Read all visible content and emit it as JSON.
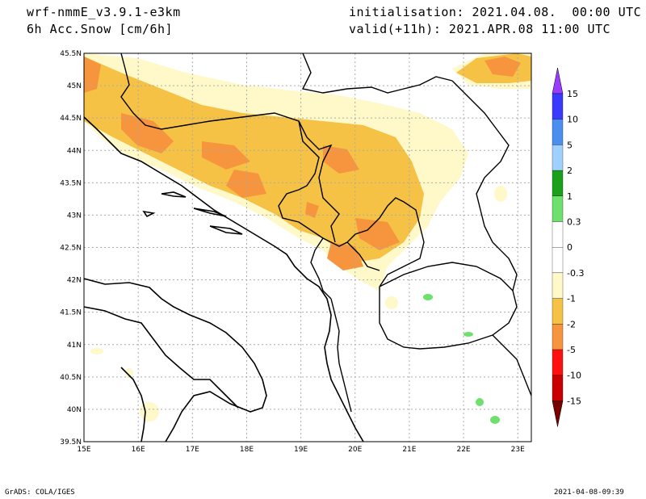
{
  "header": {
    "model": "wrf-nmmE_v3.9.1-e3km",
    "variable": "6h Acc.Snow [cm/6h]",
    "initialisation": "initialisation: 2021.04.08.  00:00 UTC",
    "valid": "valid(+11h): 2021.APR.08 11:00 UTC"
  },
  "footer": {
    "left": "GrADS: COLA/IGES",
    "right": "2021-04-08-09:39"
  },
  "map": {
    "lon_range": [
      15,
      23.25
    ],
    "lat_range": [
      39.5,
      45.5
    ],
    "lon_ticks": [
      "15E",
      "16E",
      "17E",
      "18E",
      "19E",
      "20E",
      "21E",
      "22E",
      "23E"
    ],
    "lat_ticks": [
      "39.5N",
      "40N",
      "40.5N",
      "41N",
      "41.5N",
      "42N",
      "42.5N",
      "43N",
      "43.5N",
      "44N",
      "44.5N",
      "45N",
      "45.5N"
    ],
    "grid": true
  },
  "colorbar": {
    "labels": [
      "15",
      "10",
      "5",
      "2",
      "1",
      "0.3",
      "0",
      "-0.3",
      "-1",
      "-2",
      "-5",
      "-10",
      "-15"
    ],
    "colors": [
      "#3a3aff",
      "#4a8ef0",
      "#9fd0ff",
      "#1aa01a",
      "#6ee06e",
      "#ffffff",
      "#ffffff",
      "#fff8c8",
      "#f5c245",
      "#f7943e",
      "#ff1010",
      "#c80000",
      "#9a0000"
    ],
    "top_arrow_color": "#9a3cff",
    "bottom_arrow_color": "#7a0000"
  }
}
